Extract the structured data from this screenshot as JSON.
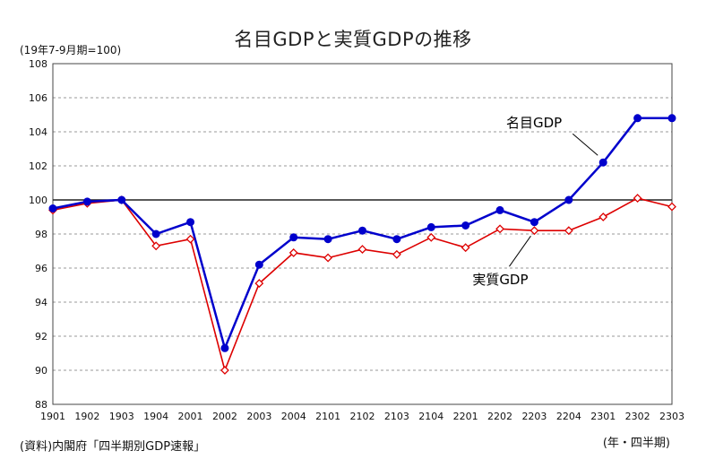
{
  "chart_data": {
    "type": "line",
    "title": "名目GDPと実質GDPの推移",
    "ylabel": "(19年7-9月期=100)",
    "xlabel": "(年・四半期)",
    "source": "(資料)内閣府「四半期別GDP速報」",
    "categories": [
      "1901",
      "1902",
      "1903",
      "1904",
      "2001",
      "2002",
      "2003",
      "2004",
      "2101",
      "2102",
      "2103",
      "2104",
      "2201",
      "2202",
      "2203",
      "2204",
      "2301",
      "2302",
      "2303"
    ],
    "yticks": [
      "88",
      "90",
      "92",
      "94",
      "96",
      "98",
      "100",
      "102",
      "104",
      "106",
      "108"
    ],
    "ylim": [
      88,
      108
    ],
    "reference_line": 100,
    "grid": true,
    "series": [
      {
        "name": "名目GDP",
        "color": "#0000cc",
        "marker": "circle",
        "values": [
          99.5,
          99.9,
          100.0,
          98.0,
          98.7,
          91.3,
          96.2,
          97.8,
          97.7,
          98.2,
          97.7,
          98.4,
          98.5,
          99.4,
          98.7,
          100.0,
          102.2,
          104.8,
          104.8
        ]
      },
      {
        "name": "実質GDP",
        "color": "#dd0000",
        "marker": "diamond",
        "values": [
          99.4,
          99.8,
          100.0,
          97.3,
          97.7,
          90.0,
          95.1,
          96.9,
          96.6,
          97.1,
          96.8,
          97.8,
          97.2,
          98.3,
          98.2,
          98.2,
          99.0,
          100.1,
          99.6
        ]
      }
    ],
    "annotations": [
      {
        "text": "名目GDP",
        "series": 0
      },
      {
        "text": "実質GDP",
        "series": 1
      }
    ]
  }
}
